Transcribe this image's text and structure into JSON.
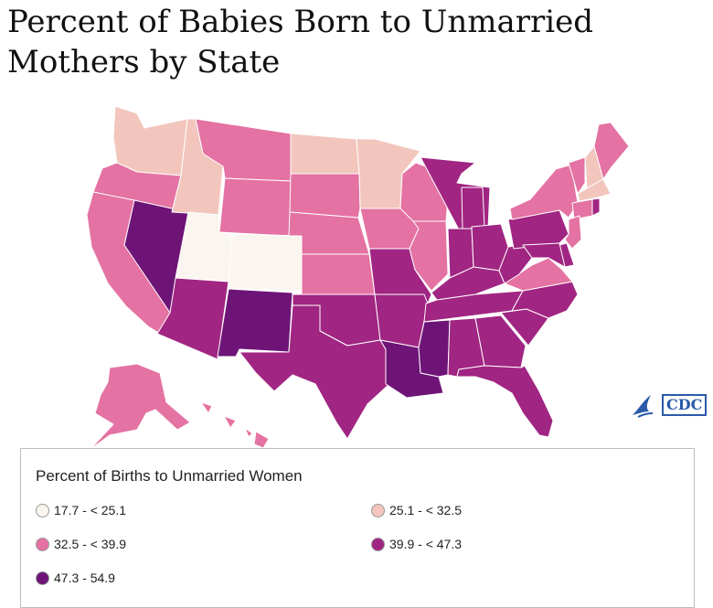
{
  "title": "Percent of Babies Born to Unmarried Mothers by State",
  "logo_text": "CDC",
  "legend": {
    "title": "Percent of Births to Unmarried Women",
    "bins": [
      {
        "id": "b1",
        "label": "17.7 - < 25.1",
        "color": "#fbf5ef"
      },
      {
        "id": "b2",
        "label": "25.1 - < 32.5",
        "color": "#f2c6bd"
      },
      {
        "id": "b3",
        "label": "32.5 - < 39.9",
        "color": "#e472a2"
      },
      {
        "id": "b4",
        "label": "39.9 - < 47.3",
        "color": "#a12582"
      },
      {
        "id": "b5",
        "label": "47.3 - 54.9",
        "color": "#6e1477"
      }
    ]
  },
  "states": [
    {
      "abbr": "WA",
      "bin": "b2"
    },
    {
      "abbr": "OR",
      "bin": "b3"
    },
    {
      "abbr": "CA",
      "bin": "b3"
    },
    {
      "abbr": "NV",
      "bin": "b5"
    },
    {
      "abbr": "ID",
      "bin": "b2"
    },
    {
      "abbr": "MT",
      "bin": "b3"
    },
    {
      "abbr": "WY",
      "bin": "b3"
    },
    {
      "abbr": "UT",
      "bin": "b1"
    },
    {
      "abbr": "CO",
      "bin": "b1"
    },
    {
      "abbr": "AZ",
      "bin": "b4"
    },
    {
      "abbr": "NM",
      "bin": "b5"
    },
    {
      "abbr": "ND",
      "bin": "b2"
    },
    {
      "abbr": "SD",
      "bin": "b3"
    },
    {
      "abbr": "NE",
      "bin": "b3"
    },
    {
      "abbr": "KS",
      "bin": "b3"
    },
    {
      "abbr": "OK",
      "bin": "b4"
    },
    {
      "abbr": "TX",
      "bin": "b4"
    },
    {
      "abbr": "MN",
      "bin": "b2"
    },
    {
      "abbr": "IA",
      "bin": "b3"
    },
    {
      "abbr": "MO",
      "bin": "b4"
    },
    {
      "abbr": "AR",
      "bin": "b4"
    },
    {
      "abbr": "LA",
      "bin": "b5"
    },
    {
      "abbr": "WI",
      "bin": "b3"
    },
    {
      "abbr": "IL",
      "bin": "b3"
    },
    {
      "abbr": "MI",
      "bin": "b4"
    },
    {
      "abbr": "IN",
      "bin": "b4"
    },
    {
      "abbr": "OH",
      "bin": "b4"
    },
    {
      "abbr": "KY",
      "bin": "b4"
    },
    {
      "abbr": "TN",
      "bin": "b4"
    },
    {
      "abbr": "MS",
      "bin": "b5"
    },
    {
      "abbr": "AL",
      "bin": "b4"
    },
    {
      "abbr": "GA",
      "bin": "b4"
    },
    {
      "abbr": "FL",
      "bin": "b4"
    },
    {
      "abbr": "SC",
      "bin": "b4"
    },
    {
      "abbr": "NC",
      "bin": "b4"
    },
    {
      "abbr": "VA",
      "bin": "b3"
    },
    {
      "abbr": "WV",
      "bin": "b4"
    },
    {
      "abbr": "PA",
      "bin": "b4"
    },
    {
      "abbr": "NY",
      "bin": "b3"
    },
    {
      "abbr": "VT",
      "bin": "b3"
    },
    {
      "abbr": "NH",
      "bin": "b2"
    },
    {
      "abbr": "ME",
      "bin": "b3"
    },
    {
      "abbr": "MA",
      "bin": "b2"
    },
    {
      "abbr": "CT",
      "bin": "b3"
    },
    {
      "abbr": "RI",
      "bin": "b4"
    },
    {
      "abbr": "NJ",
      "bin": "b3"
    },
    {
      "abbr": "DE",
      "bin": "b4"
    },
    {
      "abbr": "MD",
      "bin": "b4"
    },
    {
      "abbr": "AK",
      "bin": "b3"
    },
    {
      "abbr": "HI",
      "bin": "b3"
    }
  ]
}
